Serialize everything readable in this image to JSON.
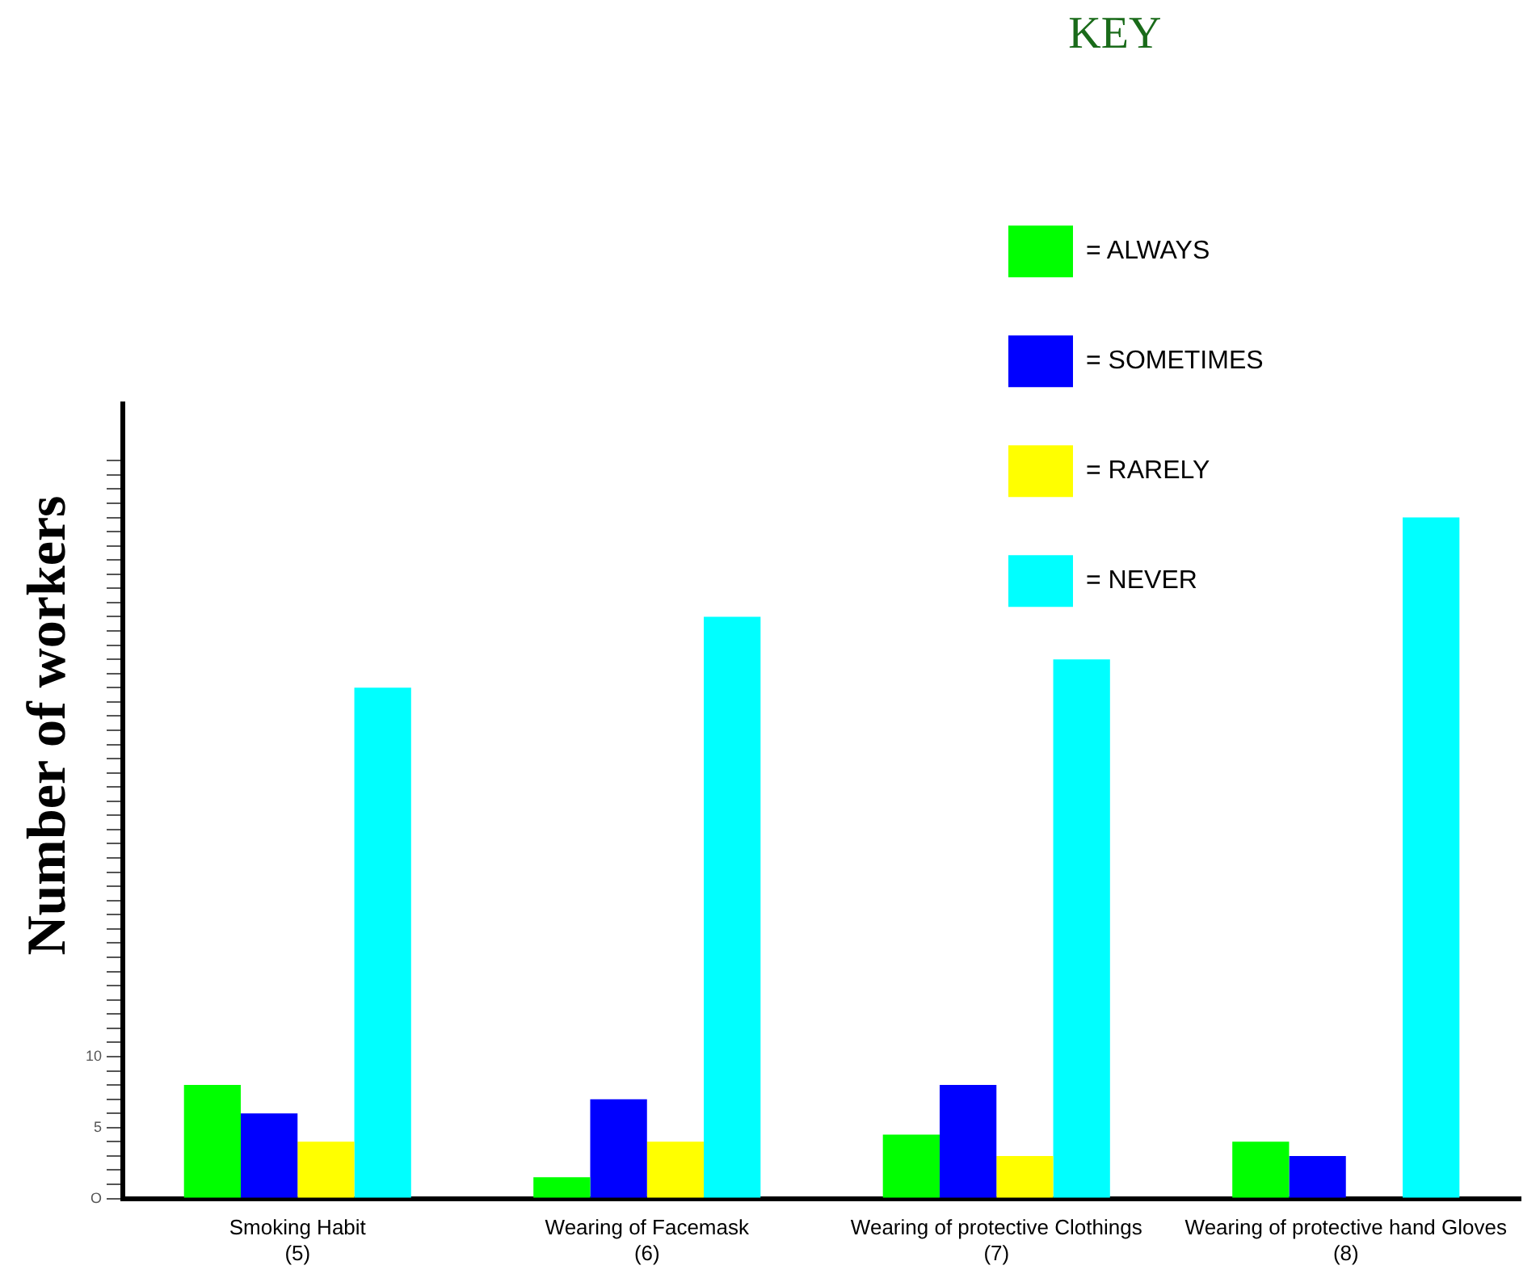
{
  "chart_data": {
    "type": "bar",
    "ylabel": "Number of workers",
    "legend_title": "KEY",
    "legend": "top right",
    "grid": false,
    "categories": [
      "Smoking Habit\n(5)",
      "Wearing of Facemask\n(6)",
      "Wearing of protective Clothings\n(7)",
      "Wearing of protective hand Gloves\n(8)"
    ],
    "series": [
      {
        "name": "= ALWAYS",
        "color": "#00ff00",
        "values": [
          8,
          1.5,
          4.5,
          4
        ]
      },
      {
        "name": "= SOMETIMES",
        "color": "#0000ff",
        "values": [
          6,
          7,
          8,
          3
        ]
      },
      {
        "name": "= RARELY",
        "color": "#ffff00",
        "values": [
          4,
          4,
          3,
          null
        ]
      },
      {
        "name": "= NEVER",
        "color": "#00ffff",
        "values": [
          36,
          41,
          38,
          48
        ]
      }
    ],
    "ylim": [
      0,
      56
    ],
    "yticks": [
      {
        "value": 0,
        "label": "O"
      },
      {
        "value": 1,
        "label": null
      },
      {
        "value": 2,
        "label": null
      },
      {
        "value": 3,
        "label": null
      },
      {
        "value": 4,
        "label": null
      },
      5,
      {
        "value": 6,
        "label": null
      },
      {
        "value": 7,
        "label": null
      },
      {
        "value": 8,
        "label": null
      },
      {
        "value": 9,
        "label": null
      },
      10,
      {
        "value": 11,
        "label": null
      },
      {
        "value": 12,
        "label": null
      },
      {
        "value": 13,
        "label": null
      },
      {
        "value": 14,
        "label": null
      },
      {
        "value": 15,
        "label": null
      },
      {
        "value": 16,
        "label": null
      },
      {
        "value": 17,
        "label": null
      },
      {
        "value": 18,
        "label": null
      },
      {
        "value": 19,
        "label": null
      },
      {
        "value": 20,
        "label": null
      },
      {
        "value": 21,
        "label": null
      },
      {
        "value": 22,
        "label": null
      },
      {
        "value": 23,
        "label": null
      },
      {
        "value": 24,
        "label": null
      },
      {
        "value": 25,
        "label": null
      },
      {
        "value": 26,
        "label": null
      },
      {
        "value": 27,
        "label": null
      },
      {
        "value": 28,
        "label": null
      },
      {
        "value": 29,
        "label": null
      },
      {
        "value": 30,
        "label": null
      },
      {
        "value": 31,
        "label": null
      },
      {
        "value": 32,
        "label": null
      },
      {
        "value": 33,
        "label": null
      },
      {
        "value": 34,
        "label": null
      },
      {
        "value": 35,
        "label": null
      },
      {
        "value": 36,
        "label": null
      },
      {
        "value": 37,
        "label": null
      },
      {
        "value": 38,
        "label": null
      },
      {
        "value": 39,
        "label": null
      },
      {
        "value": 40,
        "label": null
      },
      {
        "value": 41,
        "label": null
      },
      {
        "value": 42,
        "label": null
      },
      {
        "value": 43,
        "label": null
      },
      {
        "value": 44,
        "label": null
      },
      {
        "value": 45,
        "label": null
      },
      {
        "value": 46,
        "label": null
      },
      {
        "value": 47,
        "label": null
      },
      {
        "value": 48,
        "label": null
      },
      {
        "value": 49,
        "label": null
      },
      {
        "value": 50,
        "label": null
      },
      {
        "value": 51,
        "label": null
      },
      {
        "value": 52,
        "label": null
      }
    ]
  }
}
